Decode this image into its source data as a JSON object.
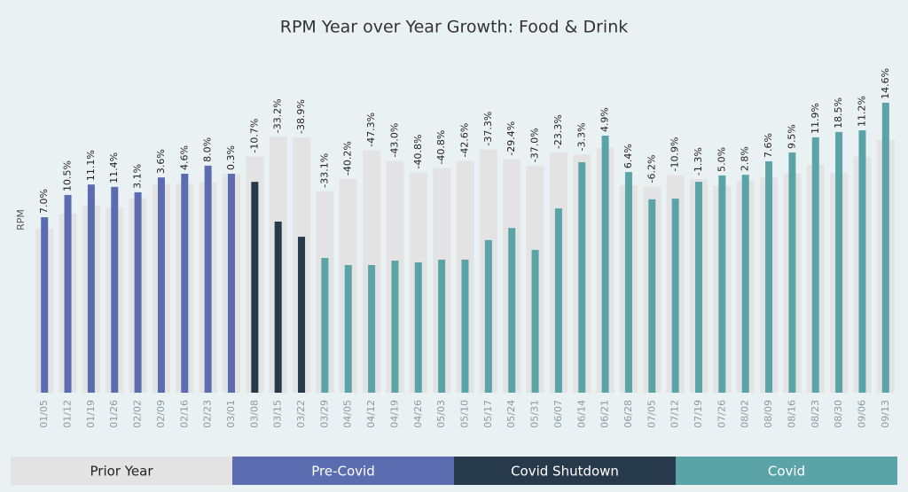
{
  "chart_data": {
    "type": "bar",
    "title": "RPM Year over Year Growth: Food & Drink",
    "y_label": "RPM",
    "categories": [
      "01/05",
      "01/12",
      "01/19",
      "01/26",
      "02/02",
      "02/09",
      "02/16",
      "02/23",
      "03/01",
      "03/08",
      "03/15",
      "03/22",
      "03/29",
      "04/05",
      "04/12",
      "04/19",
      "04/26",
      "05/03",
      "05/10",
      "05/17",
      "05/24",
      "05/31",
      "06/07",
      "06/14",
      "06/21",
      "06/28",
      "07/05",
      "07/12",
      "07/19",
      "07/26",
      "08/02",
      "08/09",
      "08/16",
      "08/23",
      "08/30",
      "09/06",
      "09/13"
    ],
    "ylim": [
      0,
      100
    ],
    "series": [
      {
        "name": "Prior Year",
        "color": "#e3e3e3",
        "values": [
          48.7,
          53.1,
          55.6,
          54.8,
          57.7,
          61.7,
          62.1,
          62.4,
          64.8,
          70.1,
          76.0,
          75.8,
          59.8,
          63.4,
          71.9,
          68.8,
          65.4,
          66.7,
          68.8,
          72.2,
          69.3,
          67.3,
          71.3,
          70.7,
          72.7,
          61.6,
          61.2,
          64.6,
          63.4,
          61.4,
          62.9,
          63.8,
          65.1,
          67.7,
          65.3,
          70.1,
          75.1
        ]
      },
      {
        "name": "Pre-Covid",
        "color": "#5b6db0",
        "values": [
          52.1,
          58.7,
          61.8,
          61.1,
          59.5,
          63.9,
          65.0,
          67.4,
          65.0,
          null,
          null,
          null,
          null,
          null,
          null,
          null,
          null,
          null,
          null,
          null,
          null,
          null,
          null,
          null,
          null,
          null,
          null,
          null,
          null,
          null,
          null,
          null,
          null,
          null,
          null,
          null,
          null
        ]
      },
      {
        "name": "Covid Shutdown",
        "color": "#263a4c",
        "values": [
          null,
          null,
          null,
          null,
          null,
          null,
          null,
          null,
          null,
          62.6,
          50.8,
          46.3,
          null,
          null,
          null,
          null,
          null,
          null,
          null,
          null,
          null,
          null,
          null,
          null,
          null,
          null,
          null,
          null,
          null,
          null,
          null,
          null,
          null,
          null,
          null,
          null,
          null
        ]
      },
      {
        "name": "Covid",
        "color": "#5aa4a7",
        "values": [
          null,
          null,
          null,
          null,
          null,
          null,
          null,
          null,
          null,
          null,
          null,
          null,
          40.0,
          37.9,
          37.9,
          39.2,
          38.7,
          39.5,
          39.5,
          45.3,
          48.9,
          42.4,
          54.7,
          68.4,
          76.3,
          65.5,
          57.4,
          57.6,
          62.6,
          64.5,
          64.7,
          68.7,
          71.3,
          75.8,
          77.4,
          77.9,
          86.1
        ]
      }
    ],
    "growth": {
      "values": [
        7.0,
        10.5,
        11.1,
        11.4,
        3.1,
        3.6,
        4.6,
        8.0,
        0.3,
        -10.7,
        -33.2,
        -38.9,
        -33.1,
        -40.2,
        -47.3,
        -43.0,
        -40.8,
        -40.8,
        -42.6,
        -37.3,
        -29.4,
        -37.0,
        -23.3,
        -3.3,
        4.9,
        6.4,
        -6.2,
        -10.9,
        -1.3,
        5.0,
        2.8,
        7.6,
        9.5,
        11.9,
        18.5,
        11.2,
        14.6
      ],
      "value_labels": [
        "7.0%",
        "10.5%",
        "11.1%",
        "11.4%",
        "3.1%",
        "3.6%",
        "4.6%",
        "8.0%",
        "0.3%",
        "-10.7%",
        "-33.2%",
        "-38.9%",
        "-33.1%",
        "-40.2%",
        "-47.3%",
        "-43.0%",
        "-40.8%",
        "-40.8%",
        "-42.6%",
        "-37.3%",
        "-29.4%",
        "-37.0%",
        "-23.3%",
        "-3.3%",
        "4.9%",
        "6.4%",
        "-6.2%",
        "-10.9%",
        "-1.3%",
        "5.0%",
        "2.8%",
        "7.6%",
        "9.5%",
        "11.9%",
        "18.5%",
        "11.2%",
        "14.6%"
      ]
    }
  }
}
